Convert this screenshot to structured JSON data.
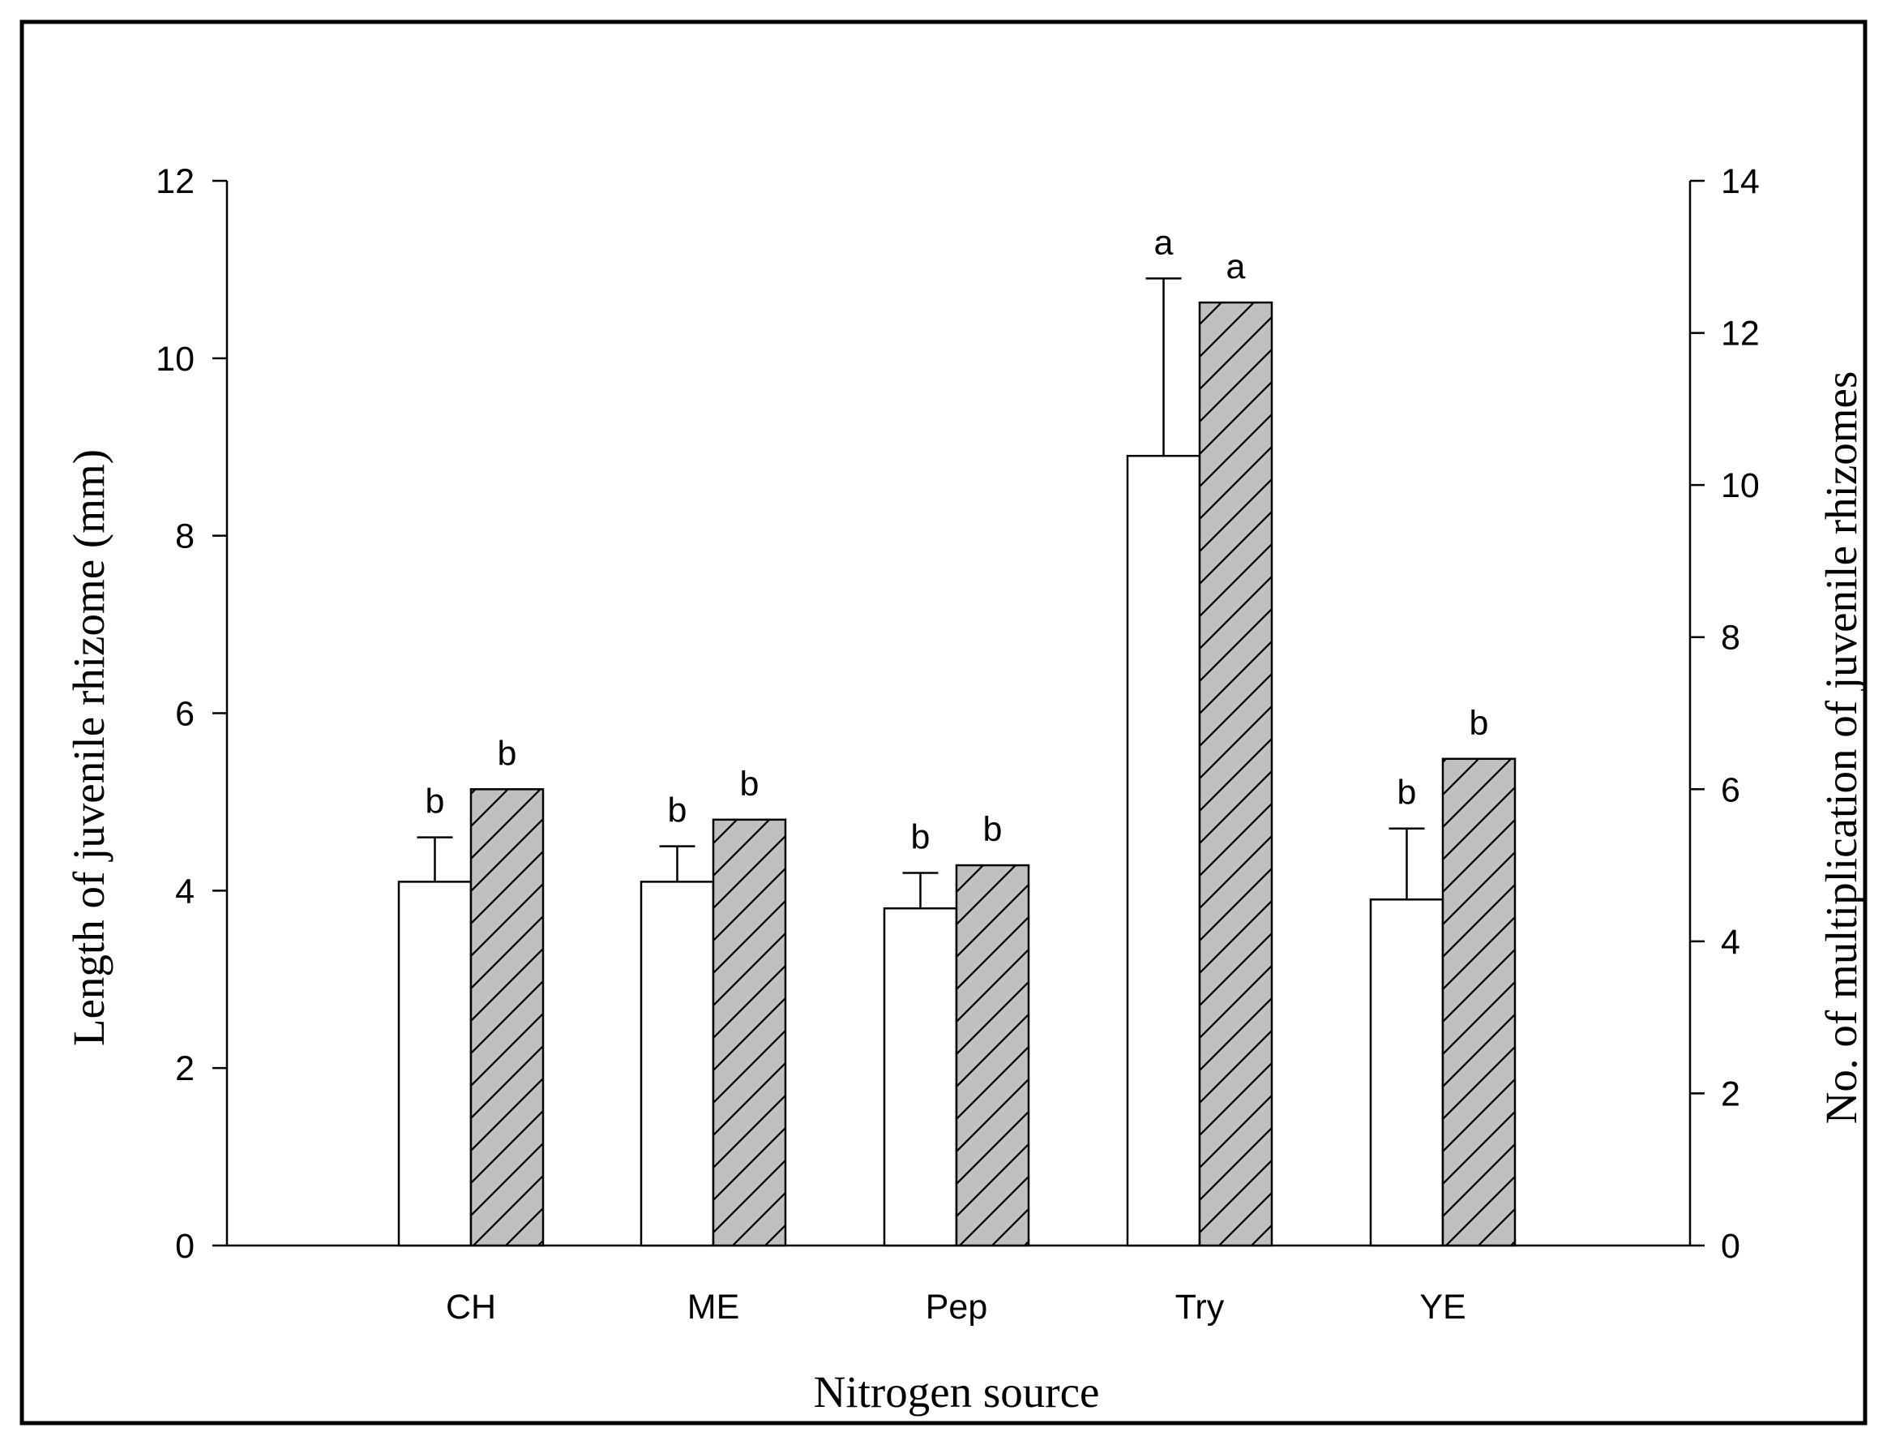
{
  "chart_data": {
    "type": "bar",
    "xlabel": "Nitrogen source",
    "ylabel": "Length of juvenile rhizome (mm)",
    "y2label": "No. of multiplication of juvenile rhizomes",
    "categories": [
      "CH",
      "ME",
      "Pep",
      "Try",
      "YE"
    ],
    "ylim": [
      0,
      12
    ],
    "y2lim": [
      0,
      14
    ],
    "yticks": [
      0,
      2,
      4,
      6,
      8,
      10,
      12
    ],
    "y2ticks": [
      0,
      2,
      4,
      6,
      8,
      10,
      12,
      14
    ],
    "grid": false,
    "series": [
      {
        "axis": "left",
        "fill": "#ffffff",
        "pattern": "none",
        "values": [
          4.1,
          4.1,
          3.8,
          8.9,
          3.9
        ],
        "error": [
          0.5,
          0.4,
          0.4,
          2.0,
          0.8
        ],
        "labels": [
          "b",
          "b",
          "b",
          "a",
          "b"
        ]
      },
      {
        "axis": "right",
        "fill": "#c0c0c0",
        "pattern": "diagonal-hatch",
        "values": [
          6.0,
          5.6,
          5.0,
          12.4,
          6.4
        ],
        "labels": [
          "b",
          "b",
          "b",
          "a",
          "b"
        ]
      }
    ]
  }
}
